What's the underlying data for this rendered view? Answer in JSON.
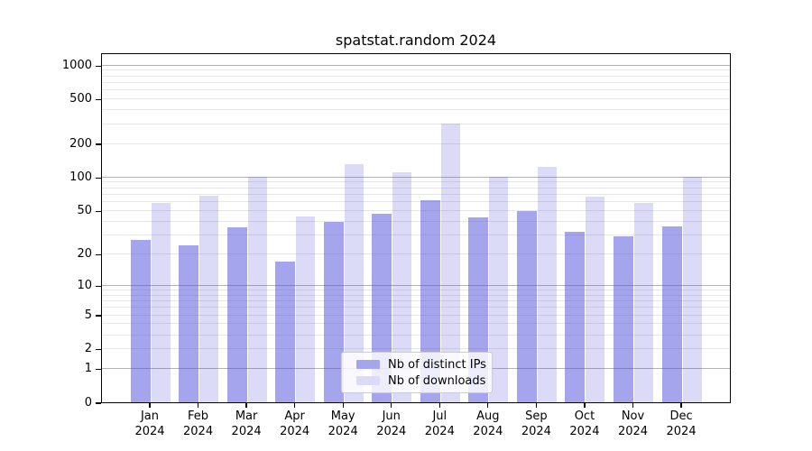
{
  "title": "spatstat.random 2024",
  "chart_data": {
    "type": "bar",
    "title": "spatstat.random 2024",
    "yscale": "log1p",
    "grid": true,
    "legend_position": "lower center",
    "categories": [
      "Jan",
      "Feb",
      "Mar",
      "Apr",
      "May",
      "Jun",
      "Jul",
      "Aug",
      "Sep",
      "Oct",
      "Nov",
      "Dec"
    ],
    "category_year": "2024",
    "series": [
      {
        "name": "Nb of distinct IPs",
        "color": "rgba(76,76,222,0.5)",
        "swatch_color": "#a5a5ee",
        "values": [
          27,
          24,
          35,
          17,
          39,
          47,
          62,
          43,
          49,
          32,
          29,
          36
        ]
      },
      {
        "name": "Nb of downloads",
        "color": "rgba(76,76,222,0.2)",
        "swatch_color": "#dbdbf8",
        "values": [
          58,
          68,
          100,
          44,
          130,
          110,
          300,
          100,
          123,
          67,
          58,
          100
        ]
      }
    ],
    "yticks": [
      0,
      1,
      2,
      5,
      10,
      20,
      50,
      100,
      200,
      500,
      1000
    ],
    "ylim": [
      0,
      1300
    ],
    "xlabel": "",
    "ylabel": "",
    "colors": {
      "major_gridline": "#b2b2b2",
      "minor_gridline": "#e7e7e7",
      "axis": "#000000"
    }
  }
}
